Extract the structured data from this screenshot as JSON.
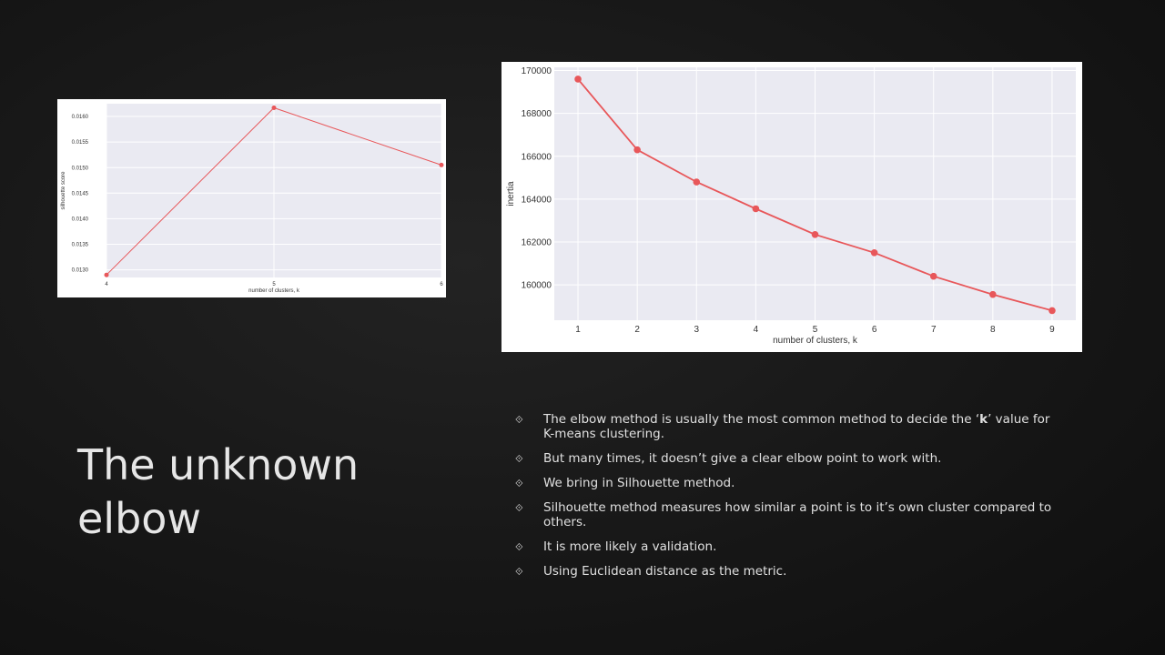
{
  "slide": {
    "title_line1": "The unknown",
    "title_line2": "elbow",
    "bullet_marker": "⟐",
    "bullets": [
      {
        "text_a": "The elbow method is usually the most common method to decide the ‘",
        "bold": "k",
        "text_b": "’ value for K-means clustering."
      },
      {
        "text": "But many times, it doesn’t give a clear elbow point to work with."
      },
      {
        "text": "We bring in Silhouette method."
      },
      {
        "text": "Silhouette method measures how similar a point is to it’s own cluster compared to others."
      },
      {
        "text": "It is more likely a validation."
      },
      {
        "text": "Using Euclidean distance as the metric."
      }
    ]
  },
  "colors": {
    "line": "#e8575a",
    "plot_bg": "#eaeaf2",
    "grid": "#ffffff",
    "text": "#333333"
  },
  "chart_data": [
    {
      "id": "silhouette",
      "type": "line",
      "xlabel": "number of clusters, k",
      "ylabel": "silhouette score",
      "x": [
        4,
        5,
        6
      ],
      "y": [
        0.0129,
        0.01617,
        0.01505
      ],
      "xlim": [
        4,
        6
      ],
      "ylim": [
        0.01285,
        0.01625
      ],
      "xticks": [
        "4",
        "5",
        "6"
      ],
      "yticks": [
        0.013,
        0.0135,
        0.014,
        0.0145,
        0.015,
        0.0155,
        0.016
      ],
      "ytick_labels": [
        "0.0130",
        "0.0135",
        "0.0140",
        "0.0145",
        "0.0150",
        "0.0155",
        "0.0160"
      ],
      "grid": true
    },
    {
      "id": "elbow",
      "type": "line",
      "xlabel": "number of clusters, k",
      "ylabel": "inertia",
      "x": [
        1,
        2,
        3,
        4,
        5,
        6,
        7,
        8,
        9
      ],
      "y": [
        169600,
        166300,
        164800,
        163550,
        162350,
        161500,
        160400,
        159550,
        158800
      ],
      "xlim": [
        0.6,
        9.4
      ],
      "ylim": [
        158350,
        170150
      ],
      "xticks": [
        "1",
        "2",
        "3",
        "4",
        "5",
        "6",
        "7",
        "8",
        "9"
      ],
      "yticks": [
        160000,
        162000,
        164000,
        166000,
        168000,
        170000
      ],
      "ytick_labels": [
        "160000",
        "162000",
        "164000",
        "166000",
        "168000",
        "170000"
      ],
      "grid": true
    }
  ]
}
